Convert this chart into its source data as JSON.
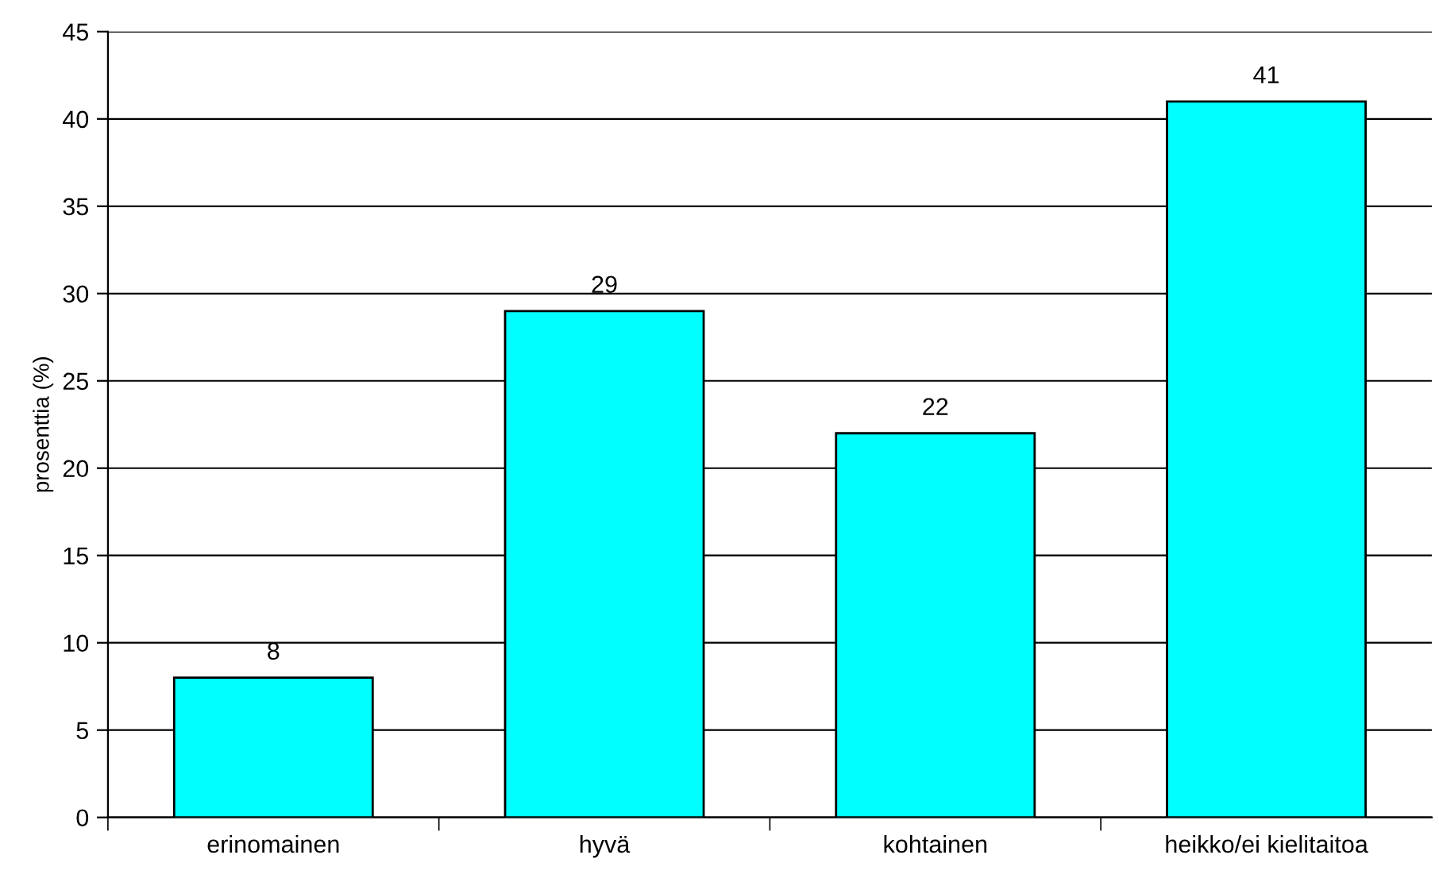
{
  "chart_data": {
    "type": "bar",
    "ylabel": "prosenttia (%)",
    "categories": [
      "erinomainen",
      "hyvä",
      "kohtainen",
      "heikko/ei kielitaitoa"
    ],
    "values": [
      8,
      29,
      22,
      41
    ],
    "color": "#00ffff",
    "ylim": [
      0,
      45
    ],
    "yticks": [
      0,
      5,
      10,
      15,
      20,
      25,
      30,
      35,
      40,
      45
    ],
    "grid": "y",
    "data_labels": true
  }
}
